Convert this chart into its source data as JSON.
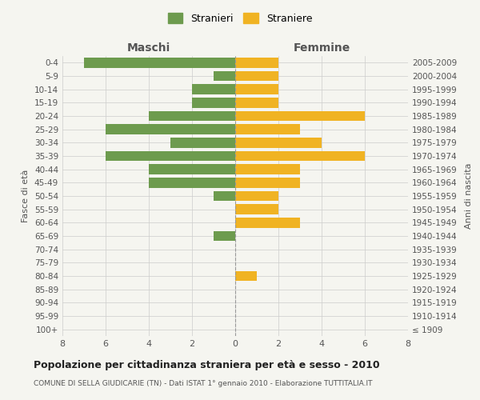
{
  "age_groups": [
    "100+",
    "95-99",
    "90-94",
    "85-89",
    "80-84",
    "75-79",
    "70-74",
    "65-69",
    "60-64",
    "55-59",
    "50-54",
    "45-49",
    "40-44",
    "35-39",
    "30-34",
    "25-29",
    "20-24",
    "15-19",
    "10-14",
    "5-9",
    "0-4"
  ],
  "birth_years": [
    "≤ 1909",
    "1910-1914",
    "1915-1919",
    "1920-1924",
    "1925-1929",
    "1930-1934",
    "1935-1939",
    "1940-1944",
    "1945-1949",
    "1950-1954",
    "1955-1959",
    "1960-1964",
    "1965-1969",
    "1970-1974",
    "1975-1979",
    "1980-1984",
    "1985-1989",
    "1990-1994",
    "1995-1999",
    "2000-2004",
    "2005-2009"
  ],
  "maschi": [
    0,
    0,
    0,
    0,
    0,
    0,
    0,
    1,
    0,
    0,
    1,
    4,
    4,
    6,
    3,
    6,
    4,
    2,
    2,
    1,
    7
  ],
  "femmine": [
    0,
    0,
    0,
    0,
    1,
    0,
    0,
    0,
    3,
    2,
    2,
    3,
    3,
    6,
    4,
    3,
    6,
    2,
    2,
    2,
    2
  ],
  "maschi_color": "#6d9b4e",
  "femmine_color": "#f0b323",
  "title": "Popolazione per cittadinanza straniera per età e sesso - 2010",
  "subtitle": "COMUNE DI SELLA GIUDICARIE (TN) - Dati ISTAT 1° gennaio 2010 - Elaborazione TUTTITALIA.IT",
  "ylabel_left": "Fasce di età",
  "ylabel_right": "Anni di nascita",
  "xlabel_left": "Maschi",
  "xlabel_right": "Femmine",
  "legend_stranieri": "Stranieri",
  "legend_straniere": "Straniere",
  "xlim": 8,
  "bg_color": "#f5f5f0",
  "grid_color": "#cccccc"
}
